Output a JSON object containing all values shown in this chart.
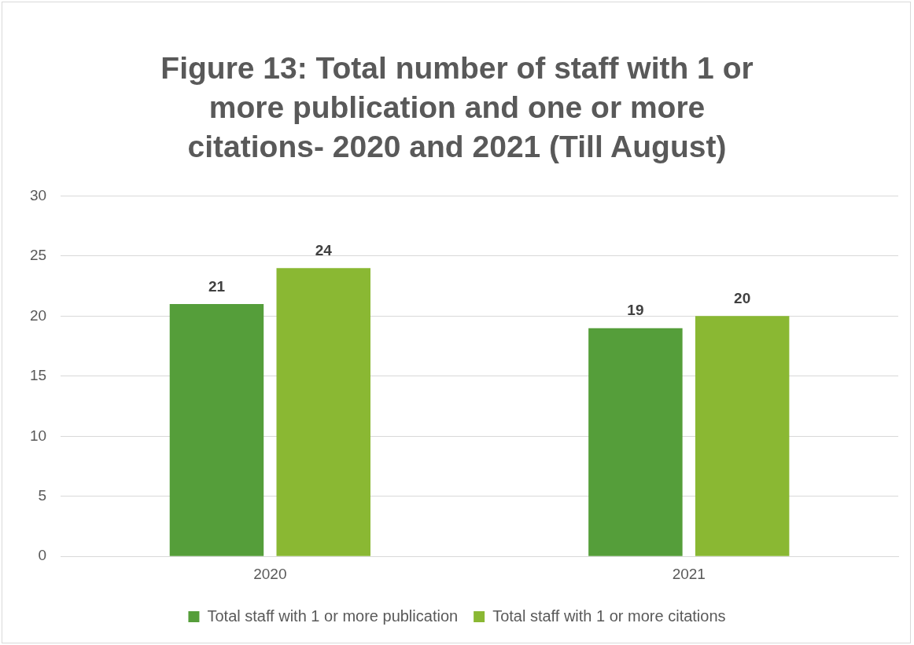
{
  "chart_data": {
    "type": "bar",
    "title": "Figure 13: Total number of staff with 1 or more publication and one or more citations- 2020 and 2021 (Till August)",
    "categories": [
      "2020",
      "2021"
    ],
    "series": [
      {
        "name": "Total staff with 1 or more publication",
        "color": "#559e3a",
        "values": [
          21,
          19
        ]
      },
      {
        "name": "Total staff with 1 or more citations",
        "color": "#8ab833",
        "values": [
          24,
          20
        ]
      }
    ],
    "ylim": [
      0,
      30
    ],
    "yticks": [
      0,
      5,
      10,
      15,
      20,
      25,
      30
    ],
    "grid": "y",
    "legend": "bottom",
    "data_labels": true
  }
}
